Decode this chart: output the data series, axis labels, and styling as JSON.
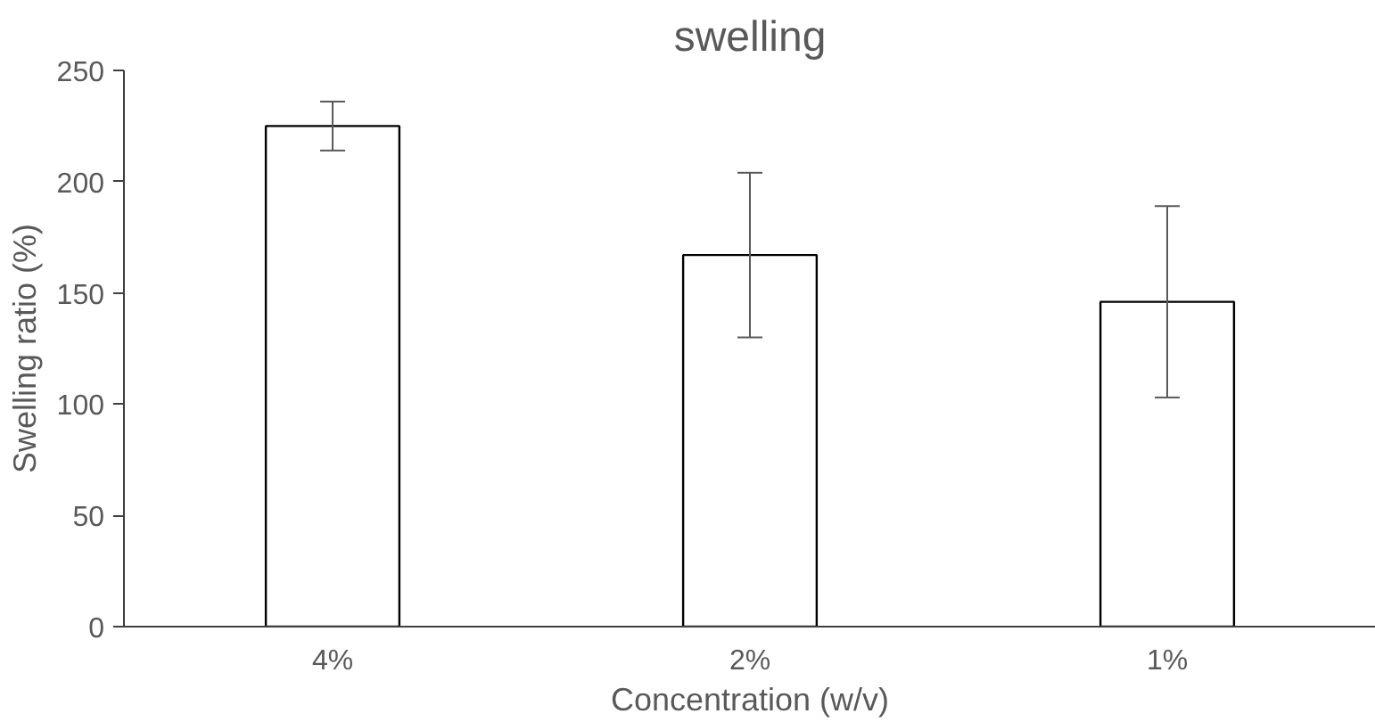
{
  "chart_data": {
    "type": "bar",
    "title": "swelling",
    "xlabel": "Concentration (w/v)",
    "ylabel": "Swelling ratio (%)",
    "categories": [
      "4%",
      "2%",
      "1%"
    ],
    "values": [
      225,
      167,
      146
    ],
    "errors": [
      11,
      37,
      43
    ],
    "color": "#ffffff",
    "ylim": [
      0,
      250
    ],
    "yticks": [
      0,
      50,
      100,
      150,
      200,
      250
    ],
    "grid": false
  }
}
